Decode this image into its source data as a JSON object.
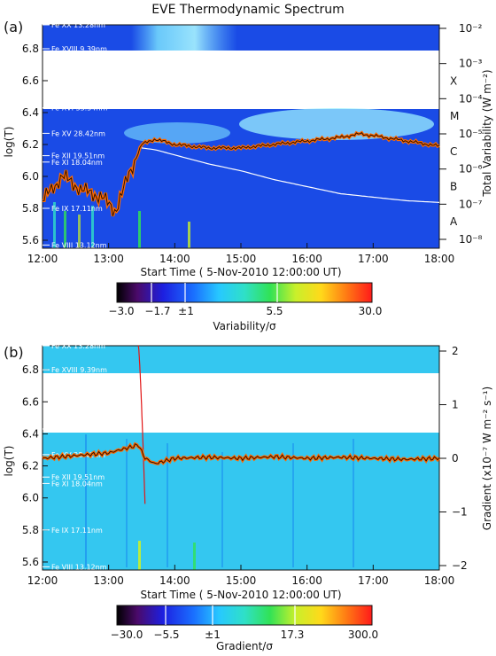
{
  "title": "EVE Thermodynamic Spectrum",
  "panels": [
    {
      "letter": "(a)",
      "ylabel": "log(T)",
      "yticks": [
        "6.8",
        "6.6",
        "6.4",
        "6.2",
        "6.0",
        "5.8",
        "5.6"
      ],
      "xticks": [
        "12:00",
        "13:00",
        "14:00",
        "15:00",
        "16:00",
        "17:00",
        "18:00"
      ],
      "xlabel": "Start Time ( 5-Nov-2010 12:00:00 UT)",
      "right_label": "Total Variability (W m⁻²)",
      "right_ticks": [
        "10⁻²",
        "10⁻³",
        "10⁻⁴",
        "10⁻⁵",
        "10⁻⁶",
        "10⁻⁷",
        "10⁻⁸"
      ],
      "goes_classes": [
        "X",
        "M",
        "C",
        "B",
        "A"
      ],
      "ions": [
        "Fe XX 13.28nm",
        "Fe XVIII 9.39nm",
        "Fe XVI 33.54nm",
        "Fe XV 28.42nm",
        "Fe XII 19.51nm",
        "Fe XI 18.04nm",
        "Fe IX 17.11nm",
        "Fe VIII 13.12nm"
      ],
      "colorbar_ticks": [
        "−3.0",
        "−1.7",
        "±1",
        "5.5",
        "30.0"
      ],
      "colorbar_label": "Variability/σ"
    },
    {
      "letter": "(b)",
      "ylabel": "log(T)",
      "yticks": [
        "6.8",
        "6.6",
        "6.4",
        "6.2",
        "6.0",
        "5.8",
        "5.6"
      ],
      "xticks": [
        "12:00",
        "13:00",
        "14:00",
        "15:00",
        "16:00",
        "17:00",
        "18:00"
      ],
      "xlabel": "Start Time ( 5-Nov-2010 12:00:00 UT)",
      "right_label": "Gradient (x10⁻⁷ W m⁻² s⁻¹)",
      "right_ticks": [
        "2",
        "1",
        "0",
        "−1",
        "−2"
      ],
      "ions": [
        "Fe XX 13.28nm",
        "Fe XVIII 9.39nm",
        "Fe XVI 33.54nm",
        "Fe XV 28.42nm",
        "Fe XII 19.51nm",
        "Fe XI 18.04nm",
        "Fe IX 17.11nm",
        "Fe VIII 13.12nm"
      ],
      "colorbar_ticks": [
        "−30.0",
        "−5.5",
        "±1",
        "17.3",
        "300.0"
      ],
      "colorbar_label": "Gradient/σ"
    }
  ],
  "chart_data": [
    {
      "type": "heatmap",
      "x_range_hours": [
        12,
        18
      ],
      "ylim": [
        5.55,
        6.95
      ],
      "ion_logT": [
        6.95,
        6.8,
        6.43,
        6.27,
        6.13,
        6.09,
        5.8,
        5.57
      ],
      "overlay_total_variability": {
        "x": [
          12.0,
          12.3,
          12.6,
          12.9,
          13.1,
          13.3,
          13.5,
          13.7,
          14.0,
          14.5,
          15.0,
          15.5,
          16.0,
          16.5,
          16.8,
          17.0,
          17.5,
          18.0
        ],
        "log10_w_m2": [
          -6.9,
          -6.2,
          -6.6,
          -6.8,
          -7.2,
          -6.2,
          -5.3,
          -5.15,
          -5.3,
          -5.4,
          -5.4,
          -5.3,
          -5.2,
          -5.1,
          -5.0,
          -5.05,
          -5.2,
          -5.35
        ]
      },
      "overlay_background": {
        "x": [
          13.5,
          13.7,
          14.0,
          14.5,
          15.0,
          15.5,
          16.0,
          16.5,
          17.0,
          17.5,
          18.0
        ],
        "log10_w_m2": [
          -5.4,
          -5.45,
          -5.6,
          -5.85,
          -6.05,
          -6.3,
          -6.5,
          -6.7,
          -6.8,
          -6.9,
          -6.95
        ]
      }
    },
    {
      "type": "heatmap",
      "x_range_hours": [
        12,
        18
      ],
      "ylim": [
        5.55,
        6.95
      ],
      "overlay_gradient": {
        "x": [
          12.0,
          12.5,
          13.0,
          13.3,
          13.45,
          13.55,
          13.7,
          14.0,
          14.5,
          15.0,
          15.5,
          16.0,
          16.5,
          17.0,
          17.5,
          18.0
        ],
        "gradient_1e7": [
          0.0,
          0.05,
          0.1,
          0.2,
          0.25,
          0.0,
          -0.1,
          0.0,
          0.02,
          0.0,
          0.03,
          0.0,
          0.02,
          0.0,
          -0.02,
          0.0
        ]
      },
      "overlay_spike": {
        "x": [
          13.45,
          13.55
        ],
        "gradient_1e7": [
          2.1,
          -0.85
        ]
      }
    }
  ]
}
